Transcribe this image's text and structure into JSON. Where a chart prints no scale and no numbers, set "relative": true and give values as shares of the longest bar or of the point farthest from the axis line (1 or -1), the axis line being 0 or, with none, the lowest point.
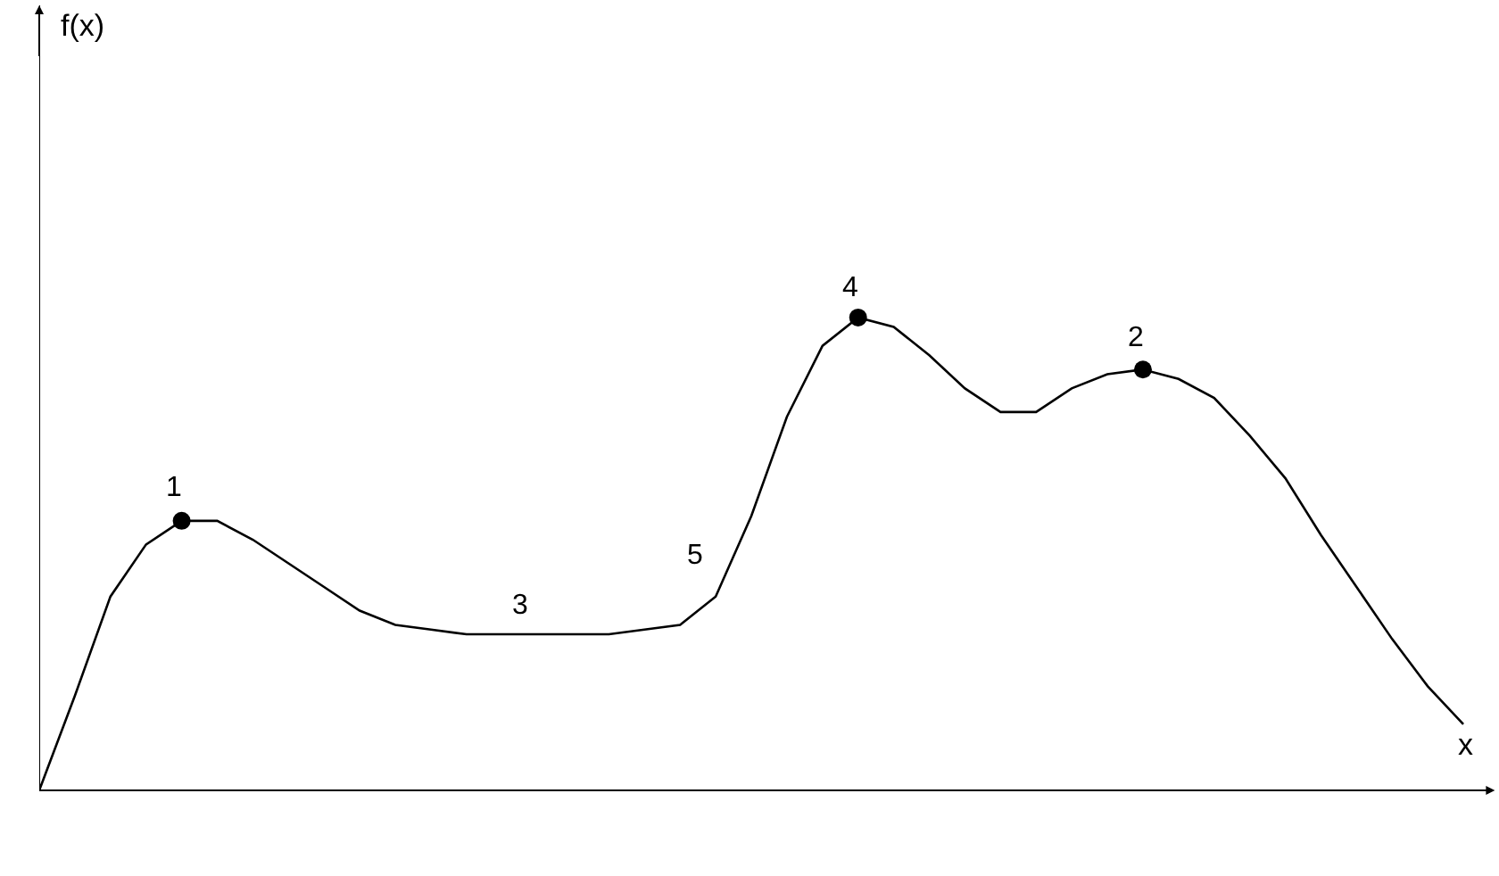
{
  "chart_data": {
    "type": "line",
    "relative": true,
    "xlabel": "x",
    "categories": [
      null,
      null,
      null,
      null,
      null,
      null,
      null,
      null,
      null,
      null,
      null,
      null,
      null,
      null,
      null,
      null,
      null,
      null,
      null,
      null,
      null,
      null,
      null,
      null,
      null,
      null,
      null,
      null,
      null,
      null,
      null,
      null,
      null,
      null,
      null,
      null,
      null,
      null,
      null,
      null,
      null
    ],
    "series": [
      {
        "color": "#000000",
        "marker": "none",
        "values": [
          0,
          0.2,
          0.41,
          0.52,
          0.57,
          0.57,
          0.53,
          0.48,
          0.43,
          0.38,
          0.35,
          0.34,
          0.33,
          0.33,
          0.33,
          0.33,
          0.33,
          0.34,
          0.35,
          0.41,
          0.58,
          0.79,
          0.94,
          1,
          0.98,
          0.92,
          0.85,
          0.8,
          0.8,
          0.85,
          0.88,
          0.89,
          0.87,
          0.83,
          0.75,
          0.66,
          0.54,
          0.43,
          0.32,
          0.22,
          0.14
        ]
      },
      {
        "color": "#000000",
        "marker": "circle",
        "values": [
          null,
          null,
          null,
          null,
          0.57,
          null,
          null,
          null,
          null,
          null,
          null,
          null,
          null,
          null,
          null,
          null,
          null,
          null,
          null,
          null,
          null,
          null,
          null,
          1,
          null,
          null,
          null,
          null,
          null,
          null,
          null,
          0.89,
          null,
          null,
          null,
          null,
          null,
          null,
          null,
          null,
          null
        ]
      }
    ],
    "annotations": [
      "f(x)",
      "1",
      "3",
      "5",
      "4",
      "2"
    ]
  }
}
